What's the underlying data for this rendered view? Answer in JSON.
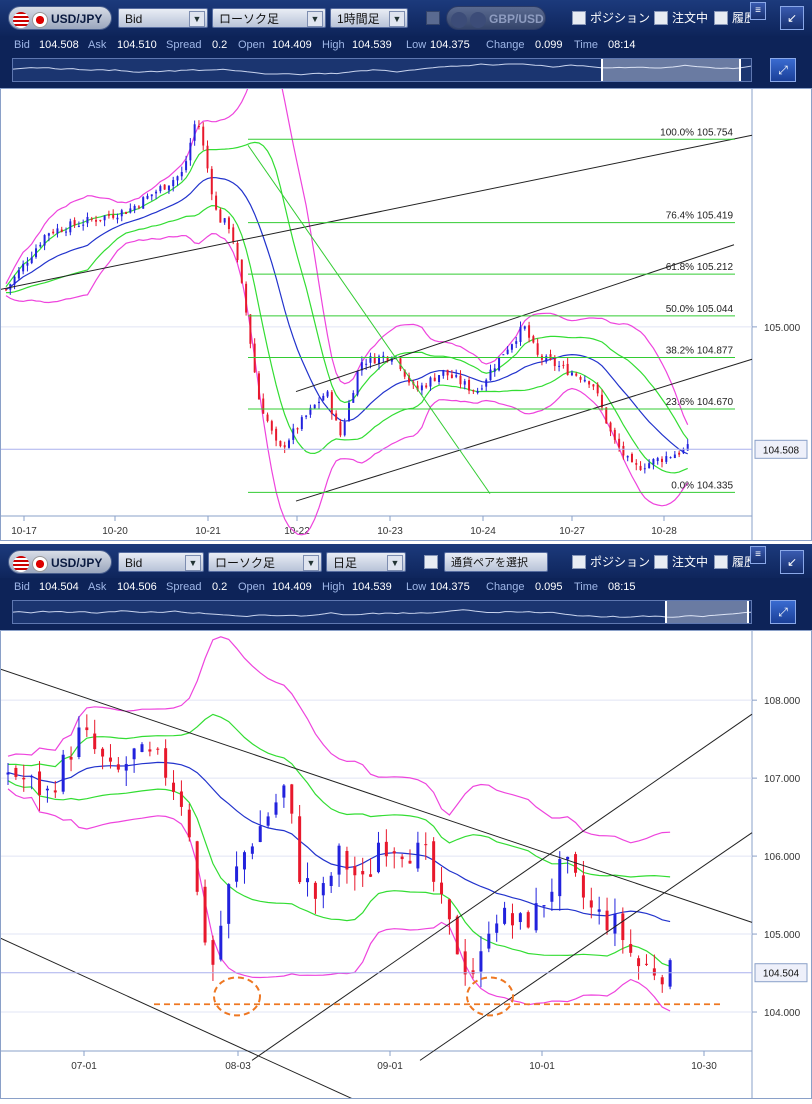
{
  "top": {
    "symbol": "USD/JPY",
    "price_type": "Bid",
    "chart_type": "ローソク足",
    "timeframe": "1時間足",
    "compare_pair": "GBP/USD",
    "checks": [
      "ポジション",
      "注文中",
      "履歴"
    ],
    "quote": {
      "bid_label": "Bid",
      "bid": "104.508",
      "ask_label": "Ask",
      "ask": "104.510",
      "spread_label": "Spread",
      "spread": "0.2",
      "open_label": "Open",
      "open": "104.409",
      "high_label": "High",
      "high": "104.539",
      "low_label": "Low",
      "low": "104.375",
      "change_label": "Change",
      "change": "0.099",
      "time_label": "Time",
      "time": "08:14"
    },
    "price_box": "104.508"
  },
  "bottom": {
    "symbol": "USD/JPY",
    "price_type": "Bid",
    "chart_type": "ローソク足",
    "timeframe": "日足",
    "compare_pair": "通貨ペアを選択",
    "checks": [
      "ポジション",
      "注文中",
      "履歴"
    ],
    "quote": {
      "bid_label": "Bid",
      "bid": "104.504",
      "ask_label": "Ask",
      "ask": "104.506",
      "spread_label": "Spread",
      "spread": "0.2",
      "open_label": "Open",
      "open": "104.409",
      "high_label": "High",
      "high": "104.539",
      "low_label": "Low",
      "low": "104.375",
      "change_label": "Change",
      "change": "0.095",
      "time_label": "Time",
      "time": "08:15"
    },
    "price_box": "104.504"
  },
  "colors": {
    "bull": "#2222dd",
    "bear": "#e8182c",
    "bb_outer": "#ee44dd",
    "bb_inner": "#33dd33",
    "ma": "#2233cc",
    "fib": "#33cc33",
    "support": "#ee7722",
    "price_line": "#aab0ee"
  },
  "chart_data": [
    {
      "type": "candlestick",
      "title": "USD/JPY 1時間足",
      "x_ticks": [
        "10-17",
        "10-20",
        "10-21",
        "10-22",
        "10-23",
        "10-24",
        "10-27",
        "10-28"
      ],
      "y_ticks": [
        105.0
      ],
      "ylim": [
        104.24,
        105.96
      ],
      "last_price": 104.508,
      "fib_levels": [
        {
          "label": "100.0%",
          "value": 105.754
        },
        {
          "label": "76.4%",
          "value": 105.419
        },
        {
          "label": "61.8%",
          "value": 105.212
        },
        {
          "label": "50.0%",
          "value": 105.044
        },
        {
          "label": "38.2%",
          "value": 104.877
        },
        {
          "label": "23.6%",
          "value": 104.67
        },
        {
          "label": "0.0%",
          "value": 104.335
        }
      ],
      "path_anchors": [
        [
          0,
          105.15
        ],
        [
          0.06,
          105.38
        ],
        [
          0.18,
          105.47
        ],
        [
          0.26,
          105.62
        ],
        [
          0.28,
          105.85
        ],
        [
          0.31,
          105.44
        ],
        [
          0.33,
          105.4
        ],
        [
          0.35,
          105.1
        ],
        [
          0.37,
          104.72
        ],
        [
          0.4,
          104.5
        ],
        [
          0.44,
          104.64
        ],
        [
          0.47,
          104.74
        ],
        [
          0.49,
          104.56
        ],
        [
          0.52,
          104.86
        ],
        [
          0.57,
          104.89
        ],
        [
          0.6,
          104.74
        ],
        [
          0.64,
          104.82
        ],
        [
          0.69,
          104.74
        ],
        [
          0.73,
          104.9
        ],
        [
          0.76,
          105.0
        ],
        [
          0.78,
          104.88
        ],
        [
          0.82,
          104.83
        ],
        [
          0.86,
          104.78
        ],
        [
          0.89,
          104.55
        ],
        [
          0.92,
          104.43
        ],
        [
          1,
          104.51
        ]
      ]
    },
    {
      "type": "candlestick",
      "title": "USD/JPY 日足",
      "x_ticks": [
        "07-01",
        "08-03",
        "09-01",
        "10-01",
        "10-30"
      ],
      "y_ticks": [
        104.0,
        105.0,
        106.0,
        107.0,
        108.0
      ],
      "ylim": [
        103.5,
        108.9
      ],
      "last_price": 104.504,
      "support_level": 104.1,
      "path_anchors": [
        [
          0,
          107.1
        ],
        [
          0.06,
          106.8
        ],
        [
          0.11,
          107.6
        ],
        [
          0.16,
          107.0
        ],
        [
          0.19,
          107.3
        ],
        [
          0.23,
          107.2
        ],
        [
          0.27,
          106.6
        ],
        [
          0.29,
          105.2
        ],
        [
          0.31,
          104.6
        ],
        [
          0.33,
          105.5
        ],
        [
          0.36,
          106.1
        ],
        [
          0.39,
          106.5
        ],
        [
          0.42,
          106.9
        ],
        [
          0.44,
          105.8
        ],
        [
          0.47,
          105.4
        ],
        [
          0.5,
          106.0
        ],
        [
          0.54,
          105.6
        ],
        [
          0.56,
          106.2
        ],
        [
          0.6,
          106.1
        ],
        [
          0.63,
          106.0
        ],
        [
          0.66,
          105.2
        ],
        [
          0.69,
          104.6
        ],
        [
          0.71,
          104.5
        ],
        [
          0.73,
          105.3
        ],
        [
          0.77,
          105.1
        ],
        [
          0.8,
          105.3
        ],
        [
          0.84,
          105.9
        ],
        [
          0.88,
          105.3
        ],
        [
          0.92,
          105.1
        ],
        [
          0.95,
          104.6
        ],
        [
          1,
          104.5
        ]
      ]
    }
  ]
}
